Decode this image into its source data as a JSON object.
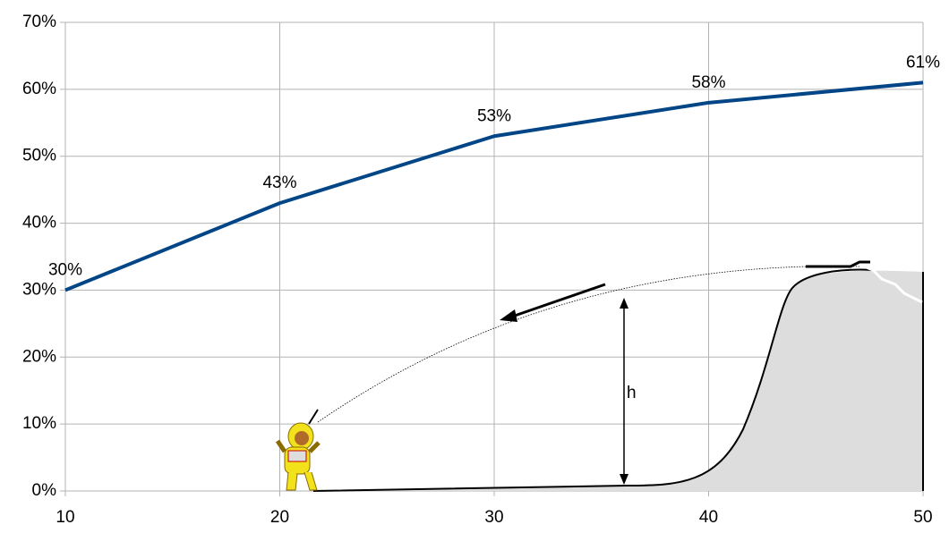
{
  "chart_data": {
    "type": "line",
    "x": [
      10,
      20,
      30,
      40,
      50
    ],
    "series": [
      {
        "color": "#004586",
        "values": [
          30,
          43,
          53,
          58,
          61
        ],
        "value_labels": [
          "30%",
          "43%",
          "53%",
          "58%",
          "61%"
        ]
      }
    ],
    "xlim": [
      10,
      50
    ],
    "xticks": [
      10,
      20,
      30,
      40,
      50
    ],
    "ylim": [
      0,
      70
    ],
    "yticks": [
      {
        "value": 0,
        "label": "0%"
      },
      {
        "value": 10,
        "label": "10%"
      },
      {
        "value": 20,
        "label": "20%"
      },
      {
        "value": 30,
        "label": "30%"
      },
      {
        "value": 40,
        "label": "40%"
      },
      {
        "value": 50,
        "label": "50%"
      },
      {
        "value": 60,
        "label": "60%"
      },
      {
        "value": 70,
        "label": "70%"
      }
    ],
    "grid": true,
    "annotation": "h"
  }
}
